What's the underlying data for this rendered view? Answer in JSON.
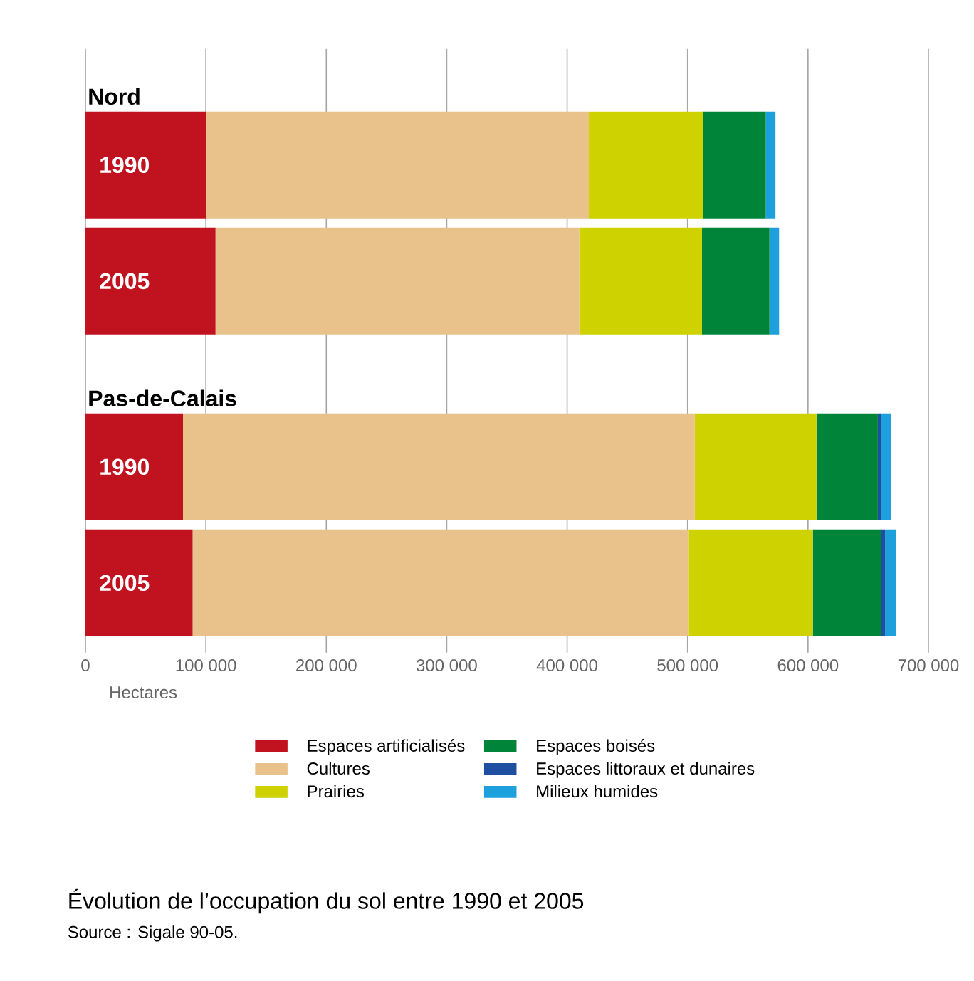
{
  "chart_data": {
    "type": "bar",
    "orientation": "horizontal",
    "stacked": true,
    "title": "Évolution de l’occupation du sol entre 1990 et 2005",
    "xlabel": "Hectares",
    "categories": [
      "1990",
      "2005",
      "1990",
      "2005"
    ],
    "series": [
      {
        "name": "Espaces artificialisés",
        "color": "#c0131f",
        "values": [
          100000,
          108000,
          81000,
          89000
        ]
      },
      {
        "name": "Cultures",
        "color": "#e8c28a",
        "values": [
          318000,
          302000,
          425000,
          412000
        ]
      },
      {
        "name": "Prairies",
        "color": "#cdd200",
        "values": [
          95000,
          102000,
          101000,
          103000
        ]
      },
      {
        "name": "Espaces boisés",
        "color": "#00843a",
        "values": [
          52000,
          56000,
          51000,
          57000
        ]
      },
      {
        "name": "Espaces littoraux et dunaires",
        "color": "#1e4fa0",
        "values": [
          0,
          0,
          3000,
          3000
        ]
      },
      {
        "name": "Milieux humides",
        "color": "#1ea0dc",
        "values": [
          8000,
          8000,
          8000,
          9000
        ]
      }
    ],
    "xlim": [
      0,
      700000
    ],
    "xticks": [
      0,
      {
        "value": 100000,
        "label": "100 000"
      },
      {
        "value": 200000,
        "label": "200 000"
      },
      {
        "value": 300000,
        "label": "300 000"
      },
      {
        "value": 400000,
        "label": "400 000"
      },
      {
        "value": 500000,
        "label": "500 000"
      },
      {
        "value": 600000,
        "label": "600 000"
      },
      {
        "value": 700000,
        "label": "700 000"
      }
    ],
    "grid": "x",
    "legend": "bottom",
    "annotations": [
      "Nord",
      "Pas-de-Calais",
      "Source : Sigale 90-05."
    ]
  }
}
